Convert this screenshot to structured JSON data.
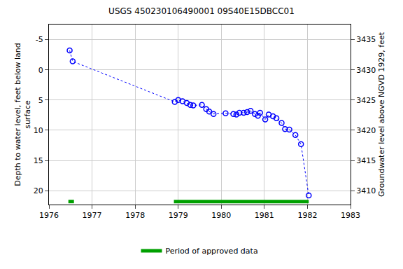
{
  "chart_data": {
    "type": "scatter",
    "title": "USGS 450230106490001 09S40E15DBCC01",
    "y_label": "Depth to water level, feet below land\nsurface",
    "y2_label": "Groundwater level above NGVD 1929, feet",
    "x": [
      1976.48,
      1976.55,
      1978.92,
      1979.0,
      1979.1,
      1979.2,
      1979.28,
      1979.35,
      1979.55,
      1979.65,
      1979.72,
      1979.82,
      1980.1,
      1980.28,
      1980.35,
      1980.42,
      1980.52,
      1980.6,
      1980.68,
      1980.78,
      1980.85,
      1980.9,
      1981.02,
      1981.1,
      1981.2,
      1981.28,
      1981.4,
      1981.48,
      1981.58,
      1981.72,
      1981.85,
      1982.03
    ],
    "values": [
      -3.2,
      -1.4,
      5.3,
      5.0,
      5.2,
      5.5,
      5.8,
      5.9,
      5.8,
      6.5,
      6.9,
      7.3,
      7.2,
      7.3,
      7.4,
      7.1,
      7.1,
      7.0,
      6.8,
      7.3,
      7.6,
      7.1,
      8.2,
      7.4,
      7.7,
      8.0,
      8.8,
      9.8,
      9.9,
      10.8,
      12.3,
      20.8
    ],
    "color": "#0000ff",
    "marker": "circle-open",
    "line_style": "dot",
    "approved_periods": {
      "name": "Period of approved data",
      "color": "#00a000",
      "y": 21.8,
      "values": [
        [
          1976.45,
          1976.58
        ],
        [
          1978.9,
          1982.03
        ]
      ]
    },
    "xlim": [
      1976,
      1983
    ],
    "xticks": [
      1976,
      1977,
      1978,
      1979,
      1980,
      1981,
      1982,
      1983
    ],
    "ylim": [
      22.3,
      -7.5
    ],
    "yticks": [
      -5,
      0,
      5,
      10,
      15,
      20
    ],
    "y2lim": [
      3407.7,
      3437.5
    ],
    "y2ticks": [
      3410,
      3415,
      3420,
      3425,
      3430,
      3435
    ],
    "grid": true,
    "legend": "bottom"
  }
}
